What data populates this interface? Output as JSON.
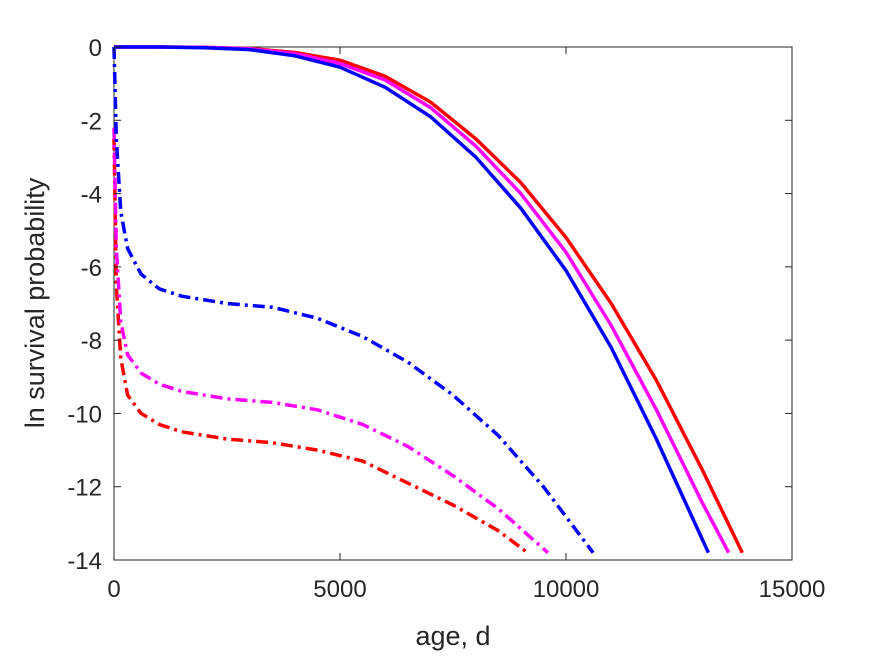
{
  "chart_data": {
    "type": "line",
    "title": "",
    "xlabel": "age, d",
    "ylabel": "ln survival probability",
    "xlim": [
      0,
      15000
    ],
    "ylim": [
      -14,
      0
    ],
    "xticks": [
      0,
      5000,
      10000,
      15000
    ],
    "yticks": [
      0,
      -2,
      -4,
      -6,
      -8,
      -10,
      -12,
      -14
    ],
    "xtick_labels": [
      "0",
      "5000",
      "10000",
      "15000"
    ],
    "ytick_labels": [
      "0",
      "-2",
      "-4",
      "-6",
      "-8",
      "-10",
      "-12",
      "-14"
    ],
    "grid": false,
    "legend": "none",
    "series": [
      {
        "color": "#ff0000",
        "style": "solid",
        "x": [
          0,
          1000,
          2000,
          3000,
          4000,
          5000,
          6000,
          7000,
          8000,
          9000,
          10000,
          11000,
          12000,
          13000,
          13900
        ],
        "y": [
          0,
          0,
          -0.01,
          -0.04,
          -0.15,
          -0.36,
          -0.8,
          -1.5,
          -2.5,
          -3.7,
          -5.2,
          -7.0,
          -9.1,
          -11.5,
          -13.8
        ]
      },
      {
        "color": "#ff00ff",
        "style": "solid",
        "x": [
          0,
          1000,
          2000,
          3000,
          4000,
          5000,
          6000,
          7000,
          8000,
          9000,
          10000,
          11000,
          12000,
          13000,
          13600
        ],
        "y": [
          0,
          0,
          -0.01,
          -0.05,
          -0.18,
          -0.45,
          -0.9,
          -1.65,
          -2.7,
          -4.0,
          -5.6,
          -7.6,
          -9.9,
          -12.4,
          -13.8
        ]
      },
      {
        "color": "#0000ff",
        "style": "solid",
        "x": [
          0,
          1000,
          2000,
          3000,
          4000,
          5000,
          6000,
          7000,
          8000,
          9000,
          10000,
          11000,
          12000,
          13150
        ],
        "y": [
          0,
          0,
          -0.02,
          -0.07,
          -0.24,
          -0.55,
          -1.1,
          -1.9,
          -3.0,
          -4.4,
          -6.1,
          -8.2,
          -10.7,
          -13.8
        ]
      },
      {
        "color": "#ff0000",
        "style": "dashdot",
        "x": [
          0,
          50,
          150,
          300,
          600,
          1000,
          1500,
          2500,
          3500,
          4500,
          5500,
          6500,
          7500,
          8500,
          9150
        ],
        "y": [
          -2.5,
          -6.5,
          -8.5,
          -9.5,
          -10.0,
          -10.3,
          -10.5,
          -10.7,
          -10.8,
          -11.0,
          -11.3,
          -11.9,
          -12.5,
          -13.2,
          -13.8
        ]
      },
      {
        "color": "#ff00ff",
        "style": "dashdot",
        "x": [
          0,
          50,
          150,
          300,
          600,
          1000,
          1500,
          2500,
          3500,
          4500,
          5500,
          6500,
          7500,
          8500,
          9600
        ],
        "y": [
          -2.2,
          -5.5,
          -7.5,
          -8.4,
          -8.9,
          -9.2,
          -9.4,
          -9.6,
          -9.7,
          -9.9,
          -10.3,
          -10.9,
          -11.7,
          -12.6,
          -13.8
        ]
      },
      {
        "color": "#0000ff",
        "style": "dashdot",
        "x": [
          0,
          50,
          150,
          300,
          600,
          1000,
          1500,
          2500,
          3500,
          4500,
          5500,
          6500,
          7500,
          8500,
          9500,
          10600
        ],
        "y": [
          0,
          -2.5,
          -4.5,
          -5.5,
          -6.2,
          -6.6,
          -6.8,
          -7.0,
          -7.1,
          -7.4,
          -7.9,
          -8.6,
          -9.5,
          -10.6,
          -12.0,
          -13.8
        ]
      }
    ]
  }
}
